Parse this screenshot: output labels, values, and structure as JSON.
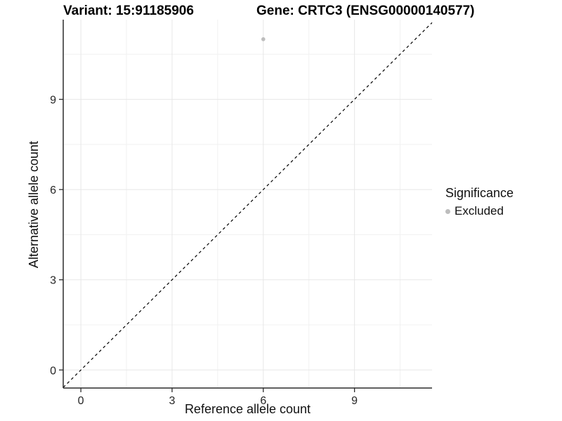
{
  "chart_data": {
    "type": "scatter",
    "title_left": "Variant: 15:91185906",
    "title_right": "Gene: CRTC3 (ENSG00000140577)",
    "xlabel": "Reference allele count",
    "ylabel": "Alternative allele count",
    "xlim": [
      -0.58,
      11.55
    ],
    "ylim": [
      -0.6,
      11.65
    ],
    "x_ticks": [
      0,
      3,
      6,
      9
    ],
    "y_ticks": [
      0,
      3,
      6,
      9
    ],
    "x_minor_ticks": [
      1.5,
      4.5,
      7.5,
      10.5
    ],
    "y_minor_ticks": [
      1.5,
      4.5,
      7.5,
      10.5
    ],
    "grid": "major+minor",
    "legend_position": "right",
    "reference_line": {
      "slope": 1,
      "intercept": 0,
      "style": "dashed",
      "color": "#000000"
    },
    "series": [
      {
        "name": "Excluded",
        "color": "#bdbdbd",
        "points": [
          {
            "x": 6,
            "y": 11
          }
        ]
      }
    ],
    "legend": {
      "title": "Significance",
      "entries": [
        {
          "label": "Excluded",
          "color": "#bdbdbd",
          "marker": "circle"
        }
      ]
    },
    "style": {
      "axis_line_color": "#2b2b2b",
      "grid_major_color": "#e7e7e7",
      "grid_minor_color": "#f1f1f1",
      "tick_label_color": "#262626",
      "background": "#ffffff"
    }
  }
}
